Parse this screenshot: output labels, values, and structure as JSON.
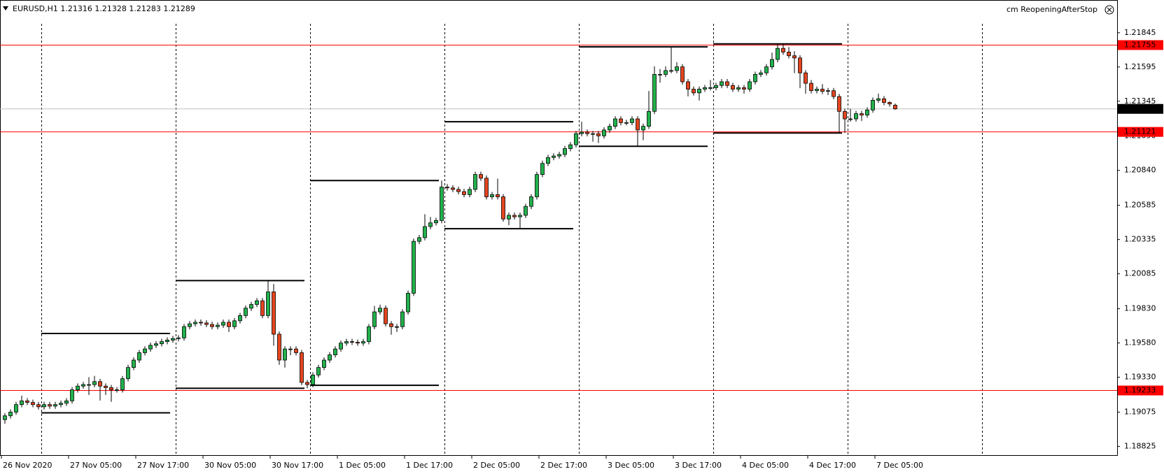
{
  "chart_data": {
    "type": "candlestick",
    "title": "EURUSD,H1  1.21316 1.21328 1.21283 1.21289",
    "indicator": "cm ReopeningAfterStop",
    "categories": [
      "26 Nov 2020",
      null,
      null,
      null,
      null,
      null,
      null,
      null,
      null,
      null,
      null,
      null,
      "27 Nov 05:00",
      null,
      null,
      null,
      null,
      null,
      null,
      null,
      null,
      null,
      null,
      null,
      "27 Nov 17:00",
      null,
      null,
      null,
      null,
      null,
      null,
      null,
      null,
      null,
      null,
      null,
      "30 Nov 05:00",
      null,
      null,
      null,
      null,
      null,
      null,
      null,
      null,
      null,
      null,
      null,
      "30 Nov 17:00",
      null,
      null,
      null,
      null,
      null,
      null,
      null,
      null,
      null,
      null,
      null,
      "1 Dec 05:00",
      null,
      null,
      null,
      null,
      null,
      null,
      null,
      null,
      null,
      null,
      null,
      "1 Dec 17:00",
      null,
      null,
      null,
      null,
      null,
      null,
      null,
      null,
      null,
      null,
      null,
      "2 Dec 05:00",
      null,
      null,
      null,
      null,
      null,
      null,
      null,
      null,
      null,
      null,
      null,
      "2 Dec 17:00",
      null,
      null,
      null,
      null,
      null,
      null,
      null,
      null,
      null,
      null,
      null,
      "3 Dec 05:00",
      null,
      null,
      null,
      null,
      null,
      null,
      null,
      null,
      null,
      null,
      null,
      "3 Dec 17:00",
      null,
      null,
      null,
      null,
      null,
      null,
      null,
      null,
      null,
      null,
      null,
      "4 Dec 05:00",
      null,
      null,
      null,
      null,
      null,
      null,
      null,
      null,
      null,
      null,
      null,
      "4 Dec 17:00",
      null,
      null,
      null,
      null,
      null,
      null,
      null,
      null,
      null,
      null,
      null,
      "7 Dec 05:00",
      null,
      null,
      null
    ],
    "ohlc": [
      [
        1.1902,
        1.19068,
        1.1899,
        1.19048
      ],
      [
        1.19048,
        1.19095,
        1.19028,
        1.19075
      ],
      [
        1.19075,
        1.1915,
        1.19055,
        1.1913
      ],
      [
        1.1913,
        1.19195,
        1.1911,
        1.19157
      ],
      [
        1.19157,
        1.19177,
        1.19126,
        1.19146
      ],
      [
        1.19146,
        1.19166,
        1.1911,
        1.1913
      ],
      [
        1.1913,
        1.1915,
        1.19094,
        1.19114
      ],
      [
        1.19114,
        1.1915,
        1.19094,
        1.1913
      ],
      [
        1.1913,
        1.1915,
        1.19099,
        1.19119
      ],
      [
        1.19119,
        1.1915,
        1.19099,
        1.1913
      ],
      [
        1.1913,
        1.1916,
        1.1911,
        1.1914
      ],
      [
        1.1914,
        1.19177,
        1.1912,
        1.19157
      ],
      [
        1.19157,
        1.19258,
        1.19137,
        1.19238
      ],
      [
        1.19238,
        1.19285,
        1.19218,
        1.19265
      ],
      [
        1.19265,
        1.19296,
        1.19245,
        1.19276
      ],
      [
        1.19276,
        1.1933,
        1.192,
        1.19276
      ],
      [
        1.19276,
        1.1934,
        1.19256,
        1.19298
      ],
      [
        1.19298,
        1.19318,
        1.1916,
        1.19265
      ],
      [
        1.19265,
        1.19285,
        1.192,
        1.19254
      ],
      [
        1.19254,
        1.19274,
        1.1915,
        1.19238
      ],
      [
        1.19238,
        1.19258,
        1.19218,
        1.19238
      ],
      [
        1.19238,
        1.19339,
        1.19218,
        1.19319
      ],
      [
        1.19319,
        1.19421,
        1.19299,
        1.19401
      ],
      [
        1.19401,
        1.19475,
        1.19381,
        1.19455
      ],
      [
        1.19455,
        1.19529,
        1.19435,
        1.19509
      ],
      [
        1.19509,
        1.19556,
        1.19489,
        1.19536
      ],
      [
        1.19536,
        1.19583,
        1.19516,
        1.19563
      ],
      [
        1.19563,
        1.19594,
        1.19543,
        1.19574
      ],
      [
        1.19574,
        1.1961,
        1.19554,
        1.1959
      ],
      [
        1.1959,
        1.19621,
        1.1957,
        1.19601
      ],
      [
        1.19601,
        1.19632,
        1.19581,
        1.19612
      ],
      [
        1.19612,
        1.19637,
        1.19592,
        1.19617
      ],
      [
        1.19617,
        1.19719,
        1.19597,
        1.19699
      ],
      [
        1.19699,
        1.1974,
        1.19679,
        1.1972
      ],
      [
        1.1972,
        1.19751,
        1.197,
        1.19731
      ],
      [
        1.19731,
        1.19751,
        1.19706,
        1.19726
      ],
      [
        1.19726,
        1.19746,
        1.19695,
        1.19715
      ],
      [
        1.19715,
        1.19735,
        1.19679,
        1.19699
      ],
      [
        1.19699,
        1.1973,
        1.19679,
        1.1971
      ],
      [
        1.1971,
        1.19751,
        1.1969,
        1.19731
      ],
      [
        1.19731,
        1.19751,
        1.1966,
        1.19699
      ],
      [
        1.19699,
        1.19762,
        1.19679,
        1.19742
      ],
      [
        1.19742,
        1.198,
        1.19722,
        1.1978
      ],
      [
        1.1978,
        1.19854,
        1.1976,
        1.19834
      ],
      [
        1.19834,
        1.19881,
        1.19814,
        1.19861
      ],
      [
        1.19861,
        1.19908,
        1.19841,
        1.19888
      ],
      [
        1.19888,
        1.19908,
        1.1976,
        1.1978
      ],
      [
        1.1978,
        1.20035,
        1.1976,
        1.19953
      ],
      [
        1.19953,
        1.2001,
        1.1956,
        1.19644
      ],
      [
        1.19644,
        1.19664,
        1.1942,
        1.19455
      ],
      [
        1.19455,
        1.19556,
        1.194,
        1.19536
      ],
      [
        1.19536,
        1.19556,
        1.1949,
        1.19536
      ],
      [
        1.19536,
        1.19556,
        1.19489,
        1.19509
      ],
      [
        1.19509,
        1.19529,
        1.19272,
        1.19292
      ],
      [
        1.19292,
        1.1931,
        1.19249,
        1.19276
      ],
      [
        1.19276,
        1.19366,
        1.19256,
        1.19346
      ],
      [
        1.19346,
        1.19421,
        1.19326,
        1.19401
      ],
      [
        1.19401,
        1.19475,
        1.19381,
        1.19455
      ],
      [
        1.19455,
        1.19513,
        1.19435,
        1.19493
      ],
      [
        1.19493,
        1.19556,
        1.19473,
        1.19536
      ],
      [
        1.19536,
        1.19599,
        1.19516,
        1.19579
      ],
      [
        1.19579,
        1.1961,
        1.19559,
        1.1959
      ],
      [
        1.1959,
        1.1961,
        1.19565,
        1.19585
      ],
      [
        1.19585,
        1.19605,
        1.19559,
        1.19579
      ],
      [
        1.19579,
        1.1961,
        1.19559,
        1.1959
      ],
      [
        1.1959,
        1.19719,
        1.1957,
        1.19699
      ],
      [
        1.19699,
        1.1985,
        1.19679,
        1.19807
      ],
      [
        1.19807,
        1.1986,
        1.19787,
        1.19834
      ],
      [
        1.19834,
        1.19854,
        1.197,
        1.1972
      ],
      [
        1.1972,
        1.1974,
        1.1964,
        1.19699
      ],
      [
        1.19699,
        1.19719,
        1.1966,
        1.19699
      ],
      [
        1.19699,
        1.19827,
        1.19679,
        1.19807
      ],
      [
        1.19807,
        1.19963,
        1.19787,
        1.19943
      ],
      [
        1.19943,
        1.20342,
        1.19923,
        1.20322
      ],
      [
        1.20322,
        1.20369,
        1.20302,
        1.20349
      ],
      [
        1.20349,
        1.2052,
        1.20329,
        1.2043
      ],
      [
        1.2043,
        1.205,
        1.2041,
        1.20457
      ],
      [
        1.20457,
        1.20494,
        1.20437,
        1.20474
      ],
      [
        1.20474,
        1.20766,
        1.20454,
        1.20718
      ],
      [
        1.20718,
        1.2074,
        1.20692,
        1.20712
      ],
      [
        1.20712,
        1.20732,
        1.20681,
        1.20701
      ],
      [
        1.20701,
        1.20721,
        1.20665,
        1.20685
      ],
      [
        1.20685,
        1.20705,
        1.20643,
        1.20663
      ],
      [
        1.20663,
        1.20721,
        1.20643,
        1.20701
      ],
      [
        1.20701,
        1.2083,
        1.20681,
        1.2081
      ],
      [
        1.2081,
        1.2083,
        1.20763,
        1.20783
      ],
      [
        1.20783,
        1.20803,
        1.20627,
        1.20647
      ],
      [
        1.20647,
        1.20683,
        1.20627,
        1.20663
      ],
      [
        1.20663,
        1.2078,
        1.20627,
        1.20647
      ],
      [
        1.20647,
        1.20667,
        1.20465,
        1.20485
      ],
      [
        1.20485,
        1.20532,
        1.2044,
        1.20512
      ],
      [
        1.20512,
        1.20532,
        1.20481,
        1.20501
      ],
      [
        1.20501,
        1.20532,
        1.20414,
        1.20512
      ],
      [
        1.20512,
        1.20597,
        1.20492,
        1.20577
      ],
      [
        1.20577,
        1.20667,
        1.20557,
        1.20647
      ],
      [
        1.20647,
        1.2083,
        1.20627,
        1.2081
      ],
      [
        1.2081,
        1.20911,
        1.2079,
        1.20891
      ],
      [
        1.20891,
        1.20954,
        1.20871,
        1.20934
      ],
      [
        1.20934,
        1.20965,
        1.20914,
        1.20945
      ],
      [
        1.20945,
        1.20976,
        1.20925,
        1.20956
      ],
      [
        1.20956,
        1.21019,
        1.20936,
        1.20999
      ],
      [
        1.20999,
        1.21047,
        1.20979,
        1.21027
      ],
      [
        1.21027,
        1.21128,
        1.21007,
        1.21108
      ],
      [
        1.21108,
        1.21195,
        1.21088,
        1.21119
      ],
      [
        1.21119,
        1.21139,
        1.21088,
        1.21108
      ],
      [
        1.21108,
        1.21128,
        1.2105,
        1.21108
      ],
      [
        1.21108,
        1.21128,
        1.2104,
        1.21092
      ],
      [
        1.21092,
        1.21155,
        1.21072,
        1.21135
      ],
      [
        1.21135,
        1.21182,
        1.21115,
        1.21162
      ],
      [
        1.21162,
        1.21236,
        1.21142,
        1.21216
      ],
      [
        1.21216,
        1.21236,
        1.21169,
        1.21189
      ],
      [
        1.21189,
        1.21209,
        1.21169,
        1.21189
      ],
      [
        1.21189,
        1.21236,
        1.21169,
        1.21216
      ],
      [
        1.21216,
        1.21236,
        1.21016,
        1.21135
      ],
      [
        1.21135,
        1.21182,
        1.2106,
        1.21162
      ],
      [
        1.21162,
        1.2142,
        1.21142,
        1.21271
      ],
      [
        1.21271,
        1.216,
        1.21251,
        1.21541
      ],
      [
        1.21541,
        1.2158,
        1.2148,
        1.21541
      ],
      [
        1.21541,
        1.216,
        1.21521,
        1.21569
      ],
      [
        1.21569,
        1.21742,
        1.21549,
        1.21569
      ],
      [
        1.21569,
        1.2163,
        1.21549,
        1.21596
      ],
      [
        1.21596,
        1.21616,
        1.21467,
        1.21487
      ],
      [
        1.21487,
        1.21507,
        1.2138,
        1.21433
      ],
      [
        1.21433,
        1.21453,
        1.21386,
        1.21406
      ],
      [
        1.21406,
        1.21453,
        1.2135,
        1.21433
      ],
      [
        1.21433,
        1.21464,
        1.21413,
        1.21444
      ],
      [
        1.21444,
        1.215,
        1.21424,
        1.21444
      ],
      [
        1.21444,
        1.2148,
        1.21424,
        1.2146
      ],
      [
        1.2146,
        1.21507,
        1.2144,
        1.21487
      ],
      [
        1.21487,
        1.21507,
        1.2144,
        1.2146
      ],
      [
        1.2146,
        1.2148,
        1.21413,
        1.21433
      ],
      [
        1.21433,
        1.21464,
        1.21413,
        1.21444
      ],
      [
        1.21444,
        1.21464,
        1.214,
        1.21433
      ],
      [
        1.21433,
        1.21507,
        1.21413,
        1.21487
      ],
      [
        1.21487,
        1.21561,
        1.21467,
        1.21541
      ],
      [
        1.21541,
        1.21572,
        1.21521,
        1.21552
      ],
      [
        1.21552,
        1.21616,
        1.21532,
        1.21596
      ],
      [
        1.21596,
        1.217,
        1.21576,
        1.2165
      ],
      [
        1.2165,
        1.21764,
        1.2163,
        1.21731
      ],
      [
        1.21731,
        1.21764,
        1.21684,
        1.21704
      ],
      [
        1.21704,
        1.2174,
        1.21657,
        1.21677
      ],
      [
        1.21677,
        1.2171,
        1.2155,
        1.21661
      ],
      [
        1.21661,
        1.21681,
        1.2144,
        1.21552
      ],
      [
        1.21552,
        1.21572,
        1.214,
        1.21476
      ],
      [
        1.21476,
        1.215,
        1.21402,
        1.21422
      ],
      [
        1.21422,
        1.21453,
        1.21402,
        1.21433
      ],
      [
        1.21433,
        1.2147,
        1.21397,
        1.21417
      ],
      [
        1.21417,
        1.21442,
        1.2139,
        1.21422
      ],
      [
        1.21422,
        1.21442,
        1.21359,
        1.21379
      ],
      [
        1.21379,
        1.21399,
        1.21113,
        1.21271
      ],
      [
        1.21271,
        1.21291,
        1.21113,
        1.21216
      ],
      [
        1.21216,
        1.2129,
        1.21196,
        1.21216
      ],
      [
        1.21216,
        1.21274,
        1.21196,
        1.21254
      ],
      [
        1.21254,
        1.21274,
        1.212,
        1.21244
      ],
      [
        1.21244,
        1.21301,
        1.21224,
        1.21281
      ],
      [
        1.21281,
        1.21372,
        1.21261,
        1.21352
      ],
      [
        1.21352,
        1.214,
        1.21333,
        1.21363
      ],
      [
        1.21363,
        1.21383,
        1.21316,
        1.21336
      ],
      [
        1.21336,
        1.21345,
        1.21305,
        1.21325
      ],
      [
        1.21316,
        1.21328,
        1.21283,
        1.21289
      ]
    ],
    "up_color": "#22b14c",
    "down_color": "#e5451f",
    "ylim": [
      1.18761,
      1.22084
    ],
    "yticks": [
      1.21845,
      1.21595,
      1.21345,
      {
        "value": 1.2109,
        "label": "1.21090"
      },
      {
        "value": 1.2084,
        "label": "1.20840"
      },
      1.20585,
      1.20335,
      1.20085,
      {
        "value": 1.1983,
        "label": "1.19830"
      },
      {
        "value": 1.1958,
        "label": "1.19580"
      },
      {
        "value": 1.1933,
        "label": "1.19330"
      },
      1.19075,
      1.18825
    ],
    "levels": [
      {
        "high": 1.19649,
        "low": 1.1907
      },
      {
        "high": 1.20035,
        "low": 1.19249
      },
      {
        "high": 1.20766,
        "low": 1.19271
      },
      {
        "high": 1.21195,
        "low": 1.20414
      },
      {
        "high": 1.21742,
        "low": 1.21016
      },
      {
        "high": 1.21764,
        "low": 1.21113
      }
    ],
    "hlines": [
      {
        "value": 1.21755,
        "color": "#ff0000"
      },
      {
        "value": 1.21121,
        "color": "#ff0000"
      },
      {
        "value": 1.19233,
        "color": "#ff0000"
      }
    ],
    "last_price": 1.21289
  }
}
